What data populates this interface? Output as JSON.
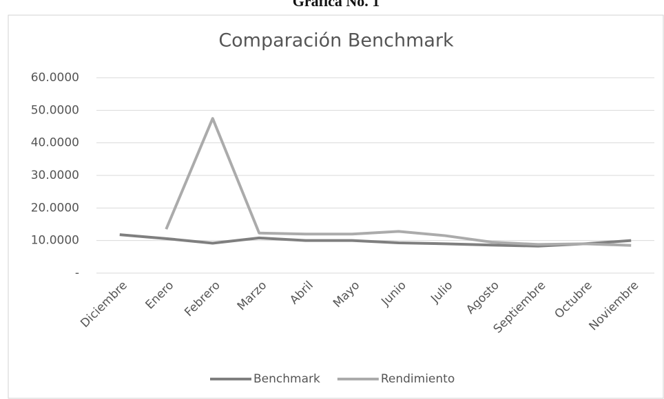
{
  "caption": "Grafica No. 1",
  "chart_data": {
    "type": "line",
    "title": "Comparación Benchmark",
    "categories": [
      "Diciembre",
      "Enero",
      "Febrero",
      "Marzo",
      "Abril",
      "Mayo",
      "Junio",
      "Julio",
      "Agosto",
      "Septiembre",
      "Octubre",
      "Noviembre"
    ],
    "series": [
      {
        "name": "Benchmark",
        "color": "#7f7f7f",
        "values": [
          11.8,
          10.6,
          9.2,
          10.8,
          10.0,
          10.0,
          9.3,
          9.0,
          8.6,
          8.3,
          9.0,
          10.0
        ]
      },
      {
        "name": "Rendimiento",
        "color": "#ababab",
        "values": [
          null,
          13.5,
          47.5,
          12.3,
          12.0,
          12.0,
          12.8,
          11.5,
          9.5,
          8.8,
          9.0,
          8.5
        ]
      }
    ],
    "ylim": [
      0,
      60
    ],
    "yticks": [
      {
        "value": 0,
        "label": "-"
      },
      {
        "value": 10,
        "label": "10.0000"
      },
      {
        "value": 20,
        "label": "20.0000"
      },
      {
        "value": 30,
        "label": "30.0000"
      },
      {
        "value": 40,
        "label": "40.0000"
      },
      {
        "value": 50,
        "label": "50.0000"
      },
      {
        "value": 60,
        "label": "60.0000"
      }
    ],
    "grid": true,
    "legend": "bottom"
  }
}
